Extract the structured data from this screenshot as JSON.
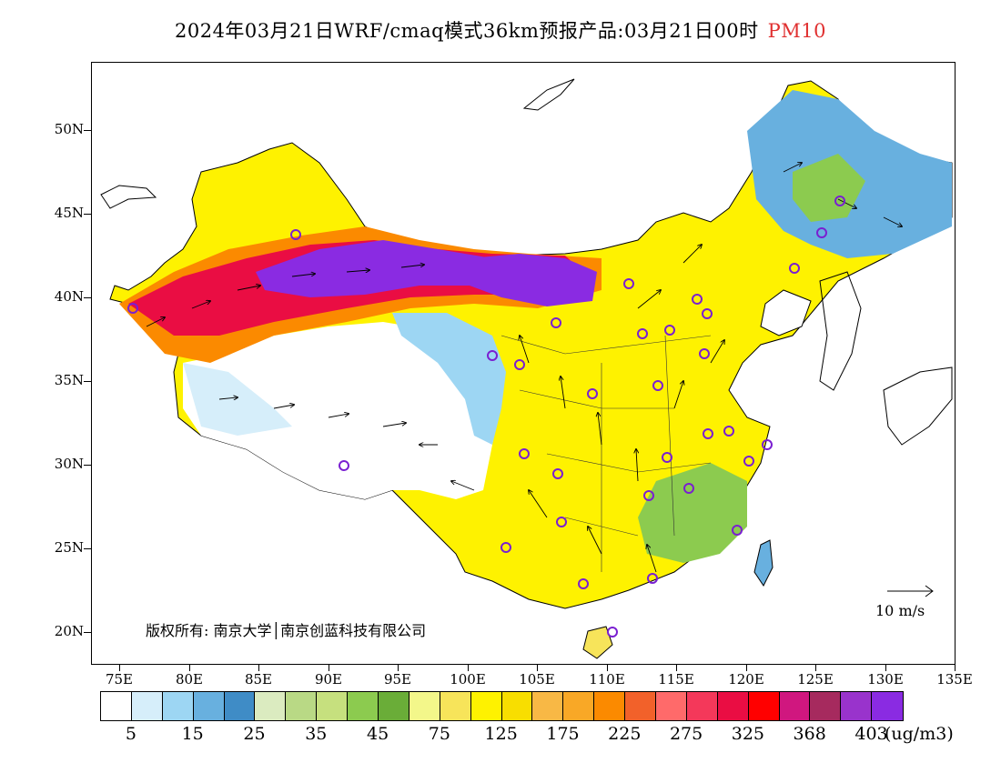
{
  "title": {
    "text": "2024年03月21日WRF/cmaq模式36km预报产品:03月21日00时",
    "pollutant": "PM10",
    "pollutant_color": "#e03030"
  },
  "axes": {
    "y_labels": [
      "50N",
      "45N",
      "40N",
      "35N",
      "30N",
      "25N",
      "20N"
    ],
    "x_labels": [
      "75E",
      "80E",
      "85E",
      "90E",
      "95E",
      "100E",
      "105E",
      "110E",
      "115E",
      "120E",
      "125E",
      "130E",
      "135E"
    ]
  },
  "copyright": "版权所有: 南京大学│南京创蓝科技有限公司",
  "wind_scale": {
    "label": "10 m/s"
  },
  "colorbar": {
    "colors": [
      "#ffffff",
      "#d6eefa",
      "#9dd6f3",
      "#68b0df",
      "#3f8cc6",
      "#dbebc0",
      "#b9d985",
      "#c6e07e",
      "#8ccb4f",
      "#6aad38",
      "#f3f78a",
      "#f7e45a",
      "#fef200",
      "#f8de00",
      "#f8b845",
      "#f9a826",
      "#fb8a00",
      "#f2612a",
      "#ff6a6a",
      "#f4385a",
      "#ea0d43",
      "#ff0000",
      "#d0177f",
      "#a62a5e",
      "#9933cc",
      "#8a2be2"
    ],
    "labels": [
      "5",
      "15",
      "25",
      "35",
      "45",
      "75",
      "125",
      "175",
      "225",
      "275",
      "325",
      "368",
      "403"
    ],
    "unit": "(ug/m3)"
  }
}
